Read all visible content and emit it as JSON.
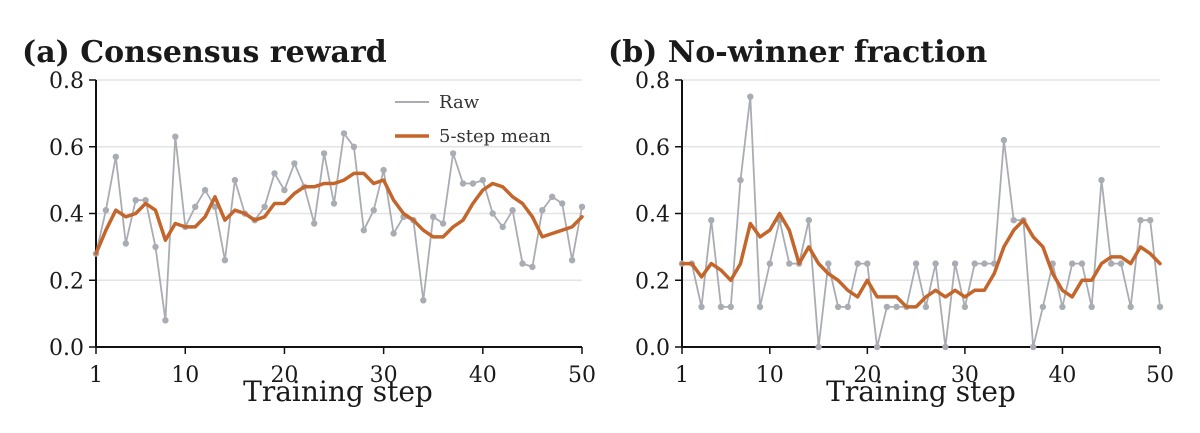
{
  "chart_data": [
    {
      "type": "line",
      "title": "(a) Consensus reward",
      "xlabel": "Training step",
      "ylabel": "",
      "xlim": [
        1,
        50
      ],
      "ylim": [
        0,
        0.8
      ],
      "xticks": [
        1,
        10,
        20,
        30,
        40,
        50
      ],
      "yticks": [
        "0.0",
        "0.2",
        "0.4",
        "0.6",
        "0.8"
      ],
      "grid": true,
      "legend_position": "top-right",
      "x": [
        1,
        2,
        3,
        4,
        5,
        6,
        7,
        8,
        9,
        10,
        11,
        12,
        13,
        14,
        15,
        16,
        17,
        18,
        19,
        20,
        21,
        22,
        23,
        24,
        25,
        26,
        27,
        28,
        29,
        30,
        31,
        32,
        33,
        34,
        35,
        36,
        37,
        38,
        39,
        40,
        41,
        42,
        43,
        44,
        45,
        46,
        47,
        48,
        49,
        50
      ],
      "series": [
        {
          "name": "Raw",
          "color": "#a9adb3",
          "markers": true,
          "values": [
            0.28,
            0.41,
            0.57,
            0.31,
            0.44,
            0.44,
            0.3,
            0.08,
            0.63,
            0.36,
            0.42,
            0.47,
            0.42,
            0.26,
            0.5,
            0.4,
            0.38,
            0.42,
            0.52,
            0.47,
            0.55,
            0.48,
            0.37,
            0.58,
            0.43,
            0.64,
            0.6,
            0.35,
            0.41,
            0.53,
            0.34,
            0.39,
            0.38,
            0.14,
            0.39,
            0.37,
            0.58,
            0.49,
            0.49,
            0.5,
            0.4,
            0.36,
            0.41,
            0.25,
            0.24,
            0.41,
            0.45,
            0.43,
            0.26,
            0.42
          ]
        },
        {
          "name": "5-step mean",
          "color": "#c4662b",
          "markers": false,
          "values": [
            0.28,
            0.35,
            0.41,
            0.39,
            0.4,
            0.43,
            0.41,
            0.32,
            0.37,
            0.36,
            0.36,
            0.39,
            0.45,
            0.38,
            0.41,
            0.4,
            0.38,
            0.39,
            0.43,
            0.43,
            0.46,
            0.48,
            0.48,
            0.49,
            0.49,
            0.5,
            0.52,
            0.52,
            0.49,
            0.5,
            0.44,
            0.4,
            0.38,
            0.35,
            0.33,
            0.33,
            0.36,
            0.38,
            0.43,
            0.47,
            0.49,
            0.48,
            0.45,
            0.43,
            0.39,
            0.33,
            0.34,
            0.35,
            0.36,
            0.39
          ]
        }
      ]
    },
    {
      "type": "line",
      "title": "(b) No-winner fraction",
      "xlabel": "Training step",
      "ylabel": "",
      "xlim": [
        1,
        50
      ],
      "ylim": [
        0,
        0.8
      ],
      "xticks": [
        1,
        10,
        20,
        30,
        40,
        50
      ],
      "yticks": [
        "0.0",
        "0.2",
        "0.4",
        "0.6",
        "0.8"
      ],
      "grid": true,
      "x": [
        1,
        2,
        3,
        4,
        5,
        6,
        7,
        8,
        9,
        10,
        11,
        12,
        13,
        14,
        15,
        16,
        17,
        18,
        19,
        20,
        21,
        22,
        23,
        24,
        25,
        26,
        27,
        28,
        29,
        30,
        31,
        32,
        33,
        34,
        35,
        36,
        37,
        38,
        39,
        40,
        41,
        42,
        43,
        44,
        45,
        46,
        47,
        48,
        49,
        50
      ],
      "series": [
        {
          "name": "Raw",
          "color": "#a9adb3",
          "markers": true,
          "values": [
            0.25,
            0.25,
            0.12,
            0.38,
            0.12,
            0.12,
            0.5,
            0.75,
            0.12,
            0.25,
            0.38,
            0.25,
            0.25,
            0.38,
            0.0,
            0.25,
            0.12,
            0.12,
            0.25,
            0.25,
            0.0,
            0.12,
            0.12,
            0.12,
            0.25,
            0.12,
            0.25,
            0.0,
            0.25,
            0.12,
            0.25,
            0.25,
            0.25,
            0.62,
            0.38,
            0.38,
            0.0,
            0.12,
            0.25,
            0.12,
            0.25,
            0.25,
            0.12,
            0.5,
            0.25,
            0.25,
            0.12,
            0.38,
            0.38,
            0.12
          ]
        },
        {
          "name": "5-step mean",
          "color": "#c4662b",
          "markers": false,
          "values": [
            0.25,
            0.25,
            0.21,
            0.25,
            0.23,
            0.2,
            0.25,
            0.37,
            0.33,
            0.35,
            0.4,
            0.35,
            0.25,
            0.3,
            0.25,
            0.22,
            0.2,
            0.17,
            0.15,
            0.2,
            0.15,
            0.15,
            0.15,
            0.12,
            0.12,
            0.15,
            0.17,
            0.15,
            0.17,
            0.15,
            0.17,
            0.17,
            0.22,
            0.3,
            0.35,
            0.38,
            0.33,
            0.3,
            0.22,
            0.17,
            0.15,
            0.2,
            0.2,
            0.25,
            0.27,
            0.27,
            0.25,
            0.3,
            0.28,
            0.25
          ]
        }
      ]
    }
  ]
}
